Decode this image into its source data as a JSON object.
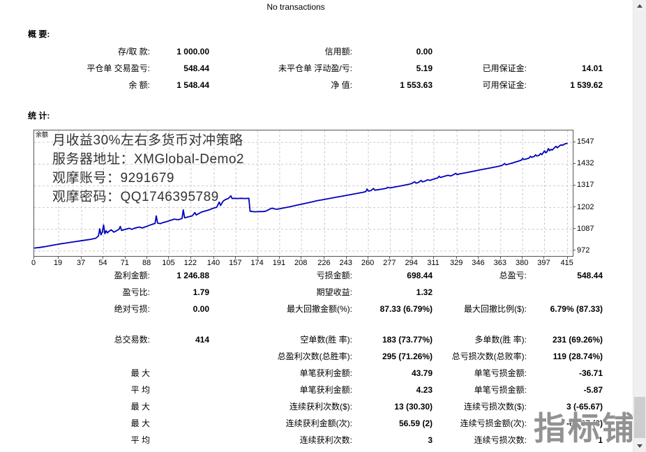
{
  "page": {
    "title": "No transactions"
  },
  "summary": {
    "heading": "概 要:",
    "rows": [
      [
        "存/取 款:",
        "1 000.00",
        "信用额:",
        "0.00",
        "",
        ""
      ],
      [
        "平仓单 交易盈亏:",
        "548.44",
        "未平仓单 浮动盈/亏:",
        "5.19",
        "已用保证金:",
        "14.01"
      ],
      [
        "余 额:",
        "1 548.44",
        "净 值:",
        "1 553.63",
        "可用保证金:",
        "1 539.62"
      ]
    ]
  },
  "stats": {
    "heading": "统 计:",
    "gap_before_row": 3,
    "rows": [
      [
        "盈利金额:",
        "1 246.88",
        "亏损金额:",
        "698.44",
        "总盈亏:",
        "548.44"
      ],
      [
        "盈亏比:",
        "1.79",
        "期望收益:",
        "1.32",
        "",
        ""
      ],
      [
        "绝对亏损:",
        "0.00",
        "最大回撤金额(%):",
        "87.33 (6.79%)",
        "最大回撤比例($):",
        "6.79% (87.33)"
      ],
      [
        "总交易数:",
        "414",
        "空单数(胜 率):",
        "183 (73.77%)",
        "多单数(胜 率):",
        "231 (69.26%)"
      ],
      [
        "",
        "",
        "总盈利次数(总胜率):",
        "295 (71.26%)",
        "总亏损次数(总败率):",
        "119 (28.74%)"
      ],
      [
        "最 大",
        "",
        "单笔获利金额:",
        "43.79",
        "单笔亏损金额:",
        "-36.71"
      ],
      [
        "平 均",
        "",
        "单笔获利金额:",
        "4.23",
        "单笔亏损金额:",
        "-5.87"
      ],
      [
        "最 大",
        "",
        "连续获利次数($):",
        "13 (30.30)",
        "连续亏损次数($):",
        "3 (-65.67)"
      ],
      [
        "最 大",
        "",
        "连续获利金额(次):",
        "56.59 (2)",
        "连续亏损金额(次):",
        "-65.67 (3)"
      ],
      [
        "平 均",
        "",
        "连续获利次数:",
        "3",
        "连续亏损次数:",
        "1"
      ]
    ]
  },
  "chart_data": {
    "type": "line",
    "title": "",
    "legend_label": "余额",
    "overlay_lines": [
      "月收益30%左右多货币对冲策略",
      "服务器地址：XMGlobal-Demo2",
      "观摩账号：9291679",
      "观摩密码：QQ1746395789"
    ],
    "line_color": "#0000bb",
    "grid": true,
    "x_ticks": [
      0,
      19,
      37,
      54,
      71,
      88,
      105,
      122,
      140,
      157,
      174,
      191,
      208,
      226,
      243,
      260,
      277,
      294,
      311,
      329,
      346,
      363,
      380,
      397,
      415
    ],
    "y_ticks": [
      972,
      1087,
      1202,
      1317,
      1432,
      1547
    ],
    "x_range": [
      0,
      419
    ],
    "y_range": [
      946,
      1610
    ],
    "series": [
      {
        "name": "余额",
        "points": [
          [
            0,
            988
          ],
          [
            4,
            991
          ],
          [
            8,
            995
          ],
          [
            12,
            1000
          ],
          [
            16,
            1005
          ],
          [
            20,
            1010
          ],
          [
            24,
            1014
          ],
          [
            28,
            1018
          ],
          [
            32,
            1022
          ],
          [
            36,
            1026
          ],
          [
            40,
            1030
          ],
          [
            44,
            1034
          ],
          [
            48,
            1040
          ],
          [
            50,
            1052
          ],
          [
            51,
            1090
          ],
          [
            52,
            1058
          ],
          [
            53,
            1072
          ],
          [
            54,
            1110
          ],
          [
            55,
            1064
          ],
          [
            56,
            1079
          ],
          [
            57,
            1068
          ],
          [
            58,
            1076
          ],
          [
            60,
            1084
          ],
          [
            62,
            1072
          ],
          [
            64,
            1079
          ],
          [
            66,
            1088
          ],
          [
            67,
            1102
          ],
          [
            68,
            1081
          ],
          [
            70,
            1085
          ],
          [
            72,
            1089
          ],
          [
            74,
            1093
          ],
          [
            76,
            1087
          ],
          [
            78,
            1093
          ],
          [
            80,
            1096
          ],
          [
            82,
            1099
          ],
          [
            84,
            1094
          ],
          [
            86,
            1099
          ],
          [
            88,
            1104
          ],
          [
            90,
            1109
          ],
          [
            92,
            1114
          ],
          [
            94,
            1118
          ],
          [
            95,
            1158
          ],
          [
            96,
            1120
          ],
          [
            98,
            1117
          ],
          [
            100,
            1122
          ],
          [
            103,
            1128
          ],
          [
            106,
            1134
          ],
          [
            109,
            1141
          ],
          [
            112,
            1138
          ],
          [
            115,
            1144
          ],
          [
            116,
            1190
          ],
          [
            117,
            1148
          ],
          [
            120,
            1153
          ],
          [
            123,
            1158
          ],
          [
            125,
            1176
          ],
          [
            126,
            1163
          ],
          [
            128,
            1170
          ],
          [
            130,
            1178
          ],
          [
            133,
            1184
          ],
          [
            136,
            1190
          ],
          [
            139,
            1198
          ],
          [
            142,
            1204
          ],
          [
            144,
            1231
          ],
          [
            145,
            1213
          ],
          [
            147,
            1236
          ],
          [
            149,
            1245
          ],
          [
            151,
            1250
          ],
          [
            153,
            1264
          ],
          [
            154,
            1250
          ],
          [
            156,
            1251
          ],
          [
            158,
            1250
          ],
          [
            161,
            1251
          ],
          [
            164,
            1250
          ],
          [
            167,
            1251
          ],
          [
            168,
            1183
          ],
          [
            170,
            1181
          ],
          [
            172,
            1180
          ],
          [
            175,
            1181
          ],
          [
            178,
            1181
          ],
          [
            180,
            1183
          ],
          [
            182,
            1189
          ],
          [
            184,
            1196
          ],
          [
            185,
            1199
          ],
          [
            187,
            1195
          ],
          [
            189,
            1193
          ],
          [
            191,
            1196
          ],
          [
            194,
            1200
          ],
          [
            197,
            1204
          ],
          [
            200,
            1208
          ],
          [
            204,
            1214
          ],
          [
            208,
            1220
          ],
          [
            212,
            1226
          ],
          [
            216,
            1232
          ],
          [
            220,
            1238
          ],
          [
            224,
            1243
          ],
          [
            228,
            1248
          ],
          [
            232,
            1253
          ],
          [
            236,
            1258
          ],
          [
            240,
            1263
          ],
          [
            244,
            1268
          ],
          [
            248,
            1273
          ],
          [
            252,
            1278
          ],
          [
            256,
            1283
          ],
          [
            258,
            1287
          ],
          [
            259,
            1300
          ],
          [
            260,
            1289
          ],
          [
            262,
            1292
          ],
          [
            264,
            1303
          ],
          [
            265,
            1294
          ],
          [
            268,
            1297
          ],
          [
            271,
            1300
          ],
          [
            274,
            1304
          ],
          [
            275,
            1309
          ],
          [
            277,
            1306
          ],
          [
            280,
            1310
          ],
          [
            283,
            1314
          ],
          [
            286,
            1318
          ],
          [
            289,
            1322
          ],
          [
            292,
            1326
          ],
          [
            294,
            1330
          ],
          [
            296,
            1339
          ],
          [
            297,
            1331
          ],
          [
            299,
            1335
          ],
          [
            301,
            1346
          ],
          [
            302,
            1338
          ],
          [
            304,
            1342
          ],
          [
            306,
            1349
          ],
          [
            308,
            1346
          ],
          [
            310,
            1351
          ],
          [
            312,
            1355
          ],
          [
            314,
            1359
          ],
          [
            315,
            1368
          ],
          [
            316,
            1361
          ],
          [
            318,
            1365
          ],
          [
            320,
            1369
          ],
          [
            322,
            1373
          ],
          [
            324,
            1369
          ],
          [
            326,
            1375
          ],
          [
            328,
            1383
          ],
          [
            329,
            1376
          ],
          [
            331,
            1380
          ],
          [
            334,
            1384
          ],
          [
            337,
            1388
          ],
          [
            340,
            1392
          ],
          [
            343,
            1396
          ],
          [
            346,
            1400
          ],
          [
            349,
            1404
          ],
          [
            352,
            1408
          ],
          [
            355,
            1412
          ],
          [
            358,
            1416
          ],
          [
            361,
            1420
          ],
          [
            364,
            1425
          ],
          [
            366,
            1435
          ],
          [
            367,
            1428
          ],
          [
            369,
            1432
          ],
          [
            371,
            1436
          ],
          [
            373,
            1440
          ],
          [
            375,
            1444
          ],
          [
            377,
            1448
          ],
          [
            379,
            1453
          ],
          [
            380,
            1462
          ],
          [
            381,
            1456
          ],
          [
            383,
            1460
          ],
          [
            385,
            1464
          ],
          [
            386,
            1473
          ],
          [
            387,
            1468
          ],
          [
            389,
            1472
          ],
          [
            390,
            1481
          ],
          [
            391,
            1475
          ],
          [
            393,
            1479
          ],
          [
            394,
            1488
          ],
          [
            395,
            1482
          ],
          [
            396,
            1492
          ],
          [
            397,
            1502
          ],
          [
            398,
            1492
          ],
          [
            399,
            1498
          ],
          [
            400,
            1514
          ],
          [
            401,
            1503
          ],
          [
            402,
            1510
          ],
          [
            403,
            1506
          ],
          [
            404,
            1513
          ],
          [
            405,
            1520
          ],
          [
            406,
            1526
          ],
          [
            407,
            1518
          ],
          [
            408,
            1524
          ],
          [
            409,
            1530
          ],
          [
            410,
            1534
          ],
          [
            411,
            1531
          ],
          [
            412,
            1536
          ],
          [
            413,
            1539
          ],
          [
            414,
            1541
          ],
          [
            415,
            1543
          ]
        ]
      }
    ]
  },
  "watermark": {
    "text": "指标铺",
    "color": "#8a8a8a"
  },
  "scrollbar": {
    "up_icon": "▲",
    "down_icon": "▼"
  }
}
